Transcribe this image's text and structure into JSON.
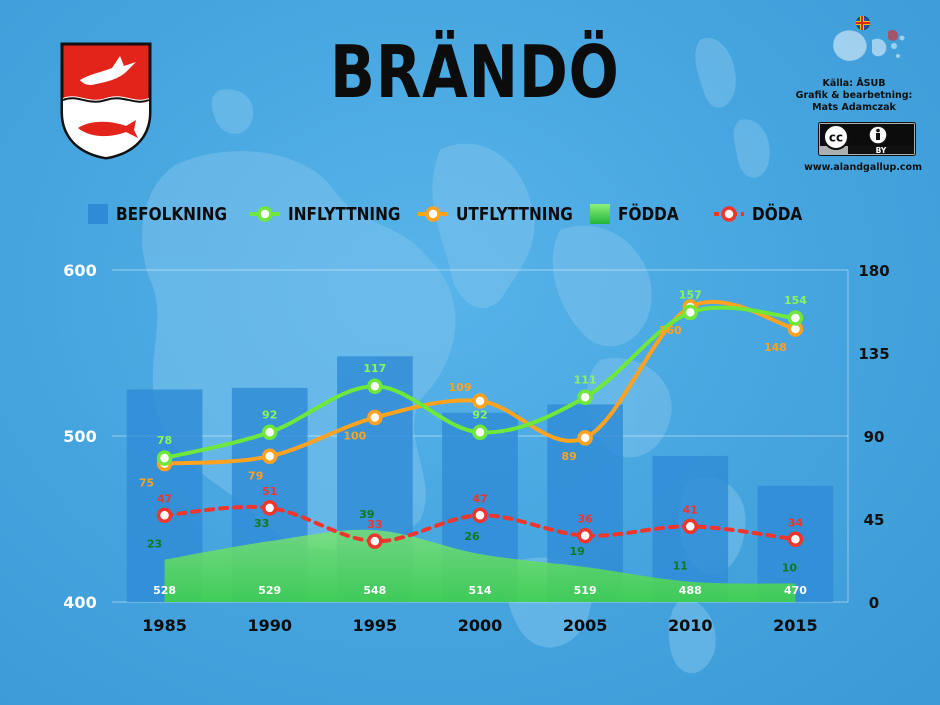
{
  "header": {
    "title": "BRÄNDÖ",
    "source_line": "Källa: ÅSUB",
    "credit_line1": "Grafik & bearbetning:",
    "credit_line2": "Mats Adamczak",
    "license_badge": "BY",
    "website": "www.alandgallup.com"
  },
  "legend": [
    {
      "label": "BEFOLKNING",
      "icon": "blue-square"
    },
    {
      "label": "INFLYTTNING",
      "icon": "green-ring-line"
    },
    {
      "label": "UTFLYTTNING",
      "icon": "orange-ring-line"
    },
    {
      "label": "FÖDDA",
      "icon": "green-gradient-square"
    },
    {
      "label": "DÖDA",
      "icon": "red-ring-dashed"
    }
  ],
  "colors": {
    "background": "#4aa8e0",
    "befolkning": "#2f8bd6",
    "inflyttning": "#6ee83a",
    "utflyttning": "#ffa21f",
    "fodda": "#3fd14a",
    "doda": "#f0352c",
    "crest_red": "#e3241b"
  },
  "chart_data": {
    "type": "bar+line",
    "categories": [
      "1985",
      "1990",
      "1995",
      "2000",
      "2005",
      "2010",
      "2015"
    ],
    "left_axis": {
      "ylim": [
        400,
        600
      ],
      "ticks": [
        "400",
        "500",
        "600"
      ]
    },
    "right_axis": {
      "ylim": [
        0,
        180
      ],
      "ticks": [
        "0",
        "45",
        "90",
        "135",
        "180"
      ]
    },
    "series": [
      {
        "name": "BEFOLKNING",
        "type": "bar",
        "axis": "left",
        "values": [
          528,
          529,
          548,
          514,
          519,
          488,
          470
        ]
      },
      {
        "name": "INFLYTTNING",
        "type": "line",
        "axis": "right",
        "values": [
          78,
          92,
          117,
          92,
          111,
          157,
          154
        ]
      },
      {
        "name": "UTFLYTTNING",
        "type": "line",
        "axis": "right",
        "values": [
          75,
          79,
          100,
          109,
          89,
          160,
          148
        ]
      },
      {
        "name": "FÖDDA",
        "type": "area",
        "axis": "right",
        "values": [
          23,
          33,
          39,
          26,
          19,
          11,
          10
        ]
      },
      {
        "name": "DÖDA",
        "type": "dashed-line",
        "axis": "right",
        "values": [
          47,
          51,
          33,
          47,
          36,
          41,
          34
        ]
      }
    ],
    "grid": true
  }
}
